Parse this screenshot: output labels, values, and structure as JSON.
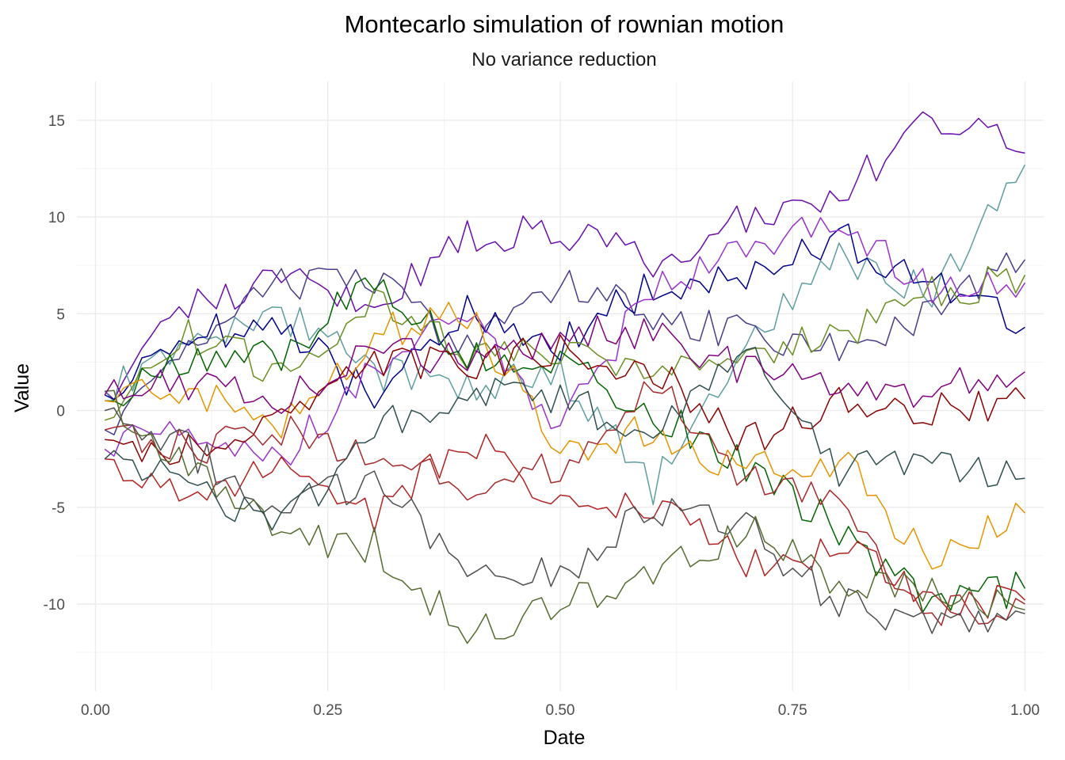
{
  "chart_data": {
    "type": "line",
    "title": "Montecarlo simulation of rownian motion",
    "subtitle": "No variance reduction",
    "xlabel": "Date",
    "ylabel": "Value",
    "xlim": [
      -0.02,
      1.02
    ],
    "ylim": [
      -14.5,
      17.0
    ],
    "x_ticks": [
      0.0,
      0.25,
      0.5,
      0.75,
      1.0
    ],
    "x_tick_labels": [
      "0.00",
      "0.25",
      "0.50",
      "0.75",
      "1.00"
    ],
    "y_ticks": [
      -10,
      -5,
      0,
      5,
      10,
      15
    ],
    "y_tick_labels": [
      "-10",
      "-5",
      "0",
      "5",
      "10",
      "15"
    ],
    "grid": true,
    "legend": "none",
    "x": [
      0.01,
      0.1,
      0.2,
      0.3,
      0.4,
      0.5,
      0.6,
      0.7,
      0.8,
      0.9,
      1.0
    ],
    "series": [
      {
        "color": "#6a0dad",
        "values": [
          1.0,
          5.5,
          6.8,
          5.5,
          9.0,
          9.2,
          7.8,
          10.0,
          11.0,
          15.2,
          13.3
        ]
      },
      {
        "color": "#5f9ea0",
        "values": [
          1.0,
          3.5,
          5.0,
          2.0,
          1.0,
          2.0,
          -4.0,
          3.5,
          8.0,
          6.0,
          12.7
        ]
      },
      {
        "color": "#483d8b",
        "values": [
          -1.0,
          3.0,
          6.5,
          7.0,
          3.0,
          6.5,
          5.0,
          4.0,
          3.0,
          5.0,
          7.8
        ]
      },
      {
        "color": "#00008b",
        "values": [
          0.8,
          4.0,
          4.5,
          0.5,
          5.0,
          3.5,
          6.5,
          7.0,
          9.0,
          6.5,
          4.3
        ]
      },
      {
        "color": "#9932cc",
        "values": [
          -2.0,
          -1.0,
          -2.3,
          2.0,
          5.5,
          -1.0,
          6.5,
          8.0,
          10.0,
          6.0,
          6.6
        ]
      },
      {
        "color": "#6b8e23",
        "values": [
          -0.5,
          4.0,
          2.0,
          5.5,
          3.0,
          3.0,
          2.5,
          2.5,
          4.0,
          6.0,
          7.0
        ]
      },
      {
        "color": "#006400",
        "values": [
          0.5,
          2.5,
          3.0,
          6.8,
          3.0,
          2.5,
          0.0,
          -3.0,
          -6.0,
          -10.0,
          -9.2
        ]
      },
      {
        "color": "#e69500",
        "values": [
          0.5,
          1.0,
          -1.0,
          4.0,
          5.0,
          -2.0,
          -1.0,
          -3.0,
          -2.5,
          -8.0,
          -5.3
        ]
      },
      {
        "color": "#8b0000",
        "values": [
          -1.5,
          -2.0,
          0.0,
          2.5,
          2.5,
          3.0,
          2.0,
          -1.5,
          0.5,
          0.0,
          0.6
        ]
      },
      {
        "color": "#b22222",
        "values": [
          -2.5,
          -4.0,
          -3.0,
          -5.5,
          -1.5,
          -4.5,
          -5.0,
          -8.0,
          -7.0,
          -10.0,
          -9.8
        ]
      },
      {
        "color": "#a52a2a",
        "values": [
          -1.0,
          -2.0,
          -1.0,
          -2.5,
          -4.0,
          -3.0,
          1.5,
          -3.5,
          -5.0,
          -10.5,
          -10.0
        ]
      },
      {
        "color": "#4f4f4f",
        "values": [
          0.0,
          -2.0,
          -5.0,
          -3.5,
          -8.0,
          -8.5,
          -5.0,
          -6.0,
          -10.0,
          -11.0,
          -10.5
        ]
      },
      {
        "color": "#556b2f",
        "values": [
          1.0,
          -3.0,
          -6.5,
          -7.0,
          -11.5,
          -10.0,
          -8.5,
          -6.0,
          -9.0,
          -9.5,
          -10.3
        ]
      },
      {
        "color": "#2f4f4f",
        "values": [
          -2.5,
          -4.0,
          -6.0,
          -1.0,
          1.0,
          0.5,
          -1.0,
          3.0,
          -3.0,
          -3.0,
          -3.5
        ]
      },
      {
        "color": "#800080",
        "values": [
          0.8,
          1.5,
          0.5,
          3.0,
          2.5,
          4.0,
          4.0,
          2.0,
          1.0,
          1.0,
          2.0
        ]
      }
    ]
  }
}
